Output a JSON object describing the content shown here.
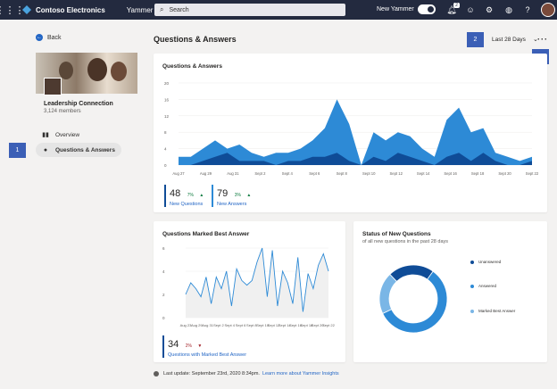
{
  "topbar": {
    "org": "Contoso Electronics",
    "app": "Yammer",
    "search_placeholder": "Search",
    "new_yammer_label": "New Yammer",
    "notification_count": "2",
    "icons": [
      "waffle-icon",
      "bell-icon",
      "smiley-icon",
      "gear-icon",
      "globe-icon",
      "help-icon"
    ]
  },
  "left": {
    "back_label": "Back",
    "group_name": "Leadership Connection",
    "group_members": "3,124 members",
    "nav": [
      {
        "label": "Overview",
        "icon": "chart-icon",
        "active": false
      },
      {
        "label": "Questions & Answers",
        "icon": "question-icon",
        "active": true
      }
    ]
  },
  "callouts": [
    "1",
    "2",
    "3"
  ],
  "main": {
    "title": "Questions & Answers",
    "range_label": "Last 28 Days",
    "more_label": "···"
  },
  "qa_card": {
    "title": "Questions & Answers",
    "stats": [
      {
        "value": "48",
        "pct": "7%",
        "label": "New Questions"
      },
      {
        "value": "79",
        "pct": "3%",
        "label": "New Answers"
      }
    ]
  },
  "best_card": {
    "title": "Questions Marked Best Answer",
    "stat": {
      "value": "34",
      "pct": "2%",
      "label": "Questions with Marked Best Answer"
    }
  },
  "status_card": {
    "title": "Status of New Questions",
    "subtitle": "of all new questions in the past 28 days",
    "legend": [
      {
        "label": "Unanswered",
        "color": "#0f4c97"
      },
      {
        "label": "Answered",
        "color": "#2d8ad6"
      },
      {
        "label": "Marked Best Answer",
        "color": "#7ab6e6"
      }
    ]
  },
  "footer": {
    "text": "Last update: September 23rd, 2020 8:34pm.",
    "link": "Learn more about Yammer Insights"
  },
  "chart_data": [
    {
      "type": "area",
      "title": "Questions & Answers",
      "ylim": [
        0,
        20
      ],
      "yticks": [
        "20",
        "16",
        "12",
        "8",
        "4",
        "0"
      ],
      "xticks": [
        "Aug 27",
        "Aug 29",
        "Aug 31",
        "Sept 2",
        "Sept 4",
        "Sept 6",
        "Sept 8",
        "Sept 10",
        "Sept 12",
        "Sept 14",
        "Sept 16",
        "Sept 18",
        "Sept 20",
        "Sept 22"
      ],
      "series": [
        {
          "name": "New Answers",
          "color": "#2d8ad6",
          "values": [
            2,
            2,
            4,
            6,
            4,
            5,
            3,
            2,
            3,
            3,
            4,
            6,
            9,
            16,
            10,
            0,
            8,
            6,
            8,
            7,
            4,
            2,
            11,
            14,
            8,
            9,
            3,
            2,
            1,
            2
          ]
        },
        {
          "name": "New Questions",
          "color": "#0f4c97",
          "values": [
            0,
            0,
            1,
            2,
            3,
            1,
            1,
            1,
            0,
            1,
            1,
            2,
            2,
            3,
            1,
            0,
            2,
            1,
            3,
            2,
            1,
            0,
            2,
            3,
            1,
            3,
            1,
            0,
            0,
            1
          ]
        }
      ]
    },
    {
      "type": "line",
      "title": "Questions Marked Best Answer",
      "ylim": [
        0,
        6
      ],
      "yticks": [
        "6",
        "4",
        "2",
        "0"
      ],
      "xticks": [
        "Aug 23",
        "Aug 29",
        "Aug 31",
        "Sept 2",
        "Sept 4",
        "Sept 6",
        "Sept 8",
        "Sept 10",
        "Sept 12",
        "Sept 14",
        "Sept 16",
        "Sept 18",
        "Sept 20",
        "Sept 22"
      ],
      "series": [
        {
          "name": "Questions Marked Best Answer",
          "color": "#2d8ad6",
          "values": [
            2.0,
            3.0,
            2.5,
            1.8,
            3.5,
            1.2,
            3.5,
            2.5,
            4.0,
            1.0,
            4.2,
            3.2,
            2.8,
            3.2,
            4.8,
            6.0,
            1.8,
            5.8,
            1.0,
            4.0,
            3.0,
            1.2,
            5.2,
            0.5,
            3.8,
            2.5,
            4.5,
            5.5,
            4.0
          ]
        }
      ]
    },
    {
      "type": "pie",
      "title": "Status of New Questions",
      "categories": [
        "Unanswered",
        "Answered",
        "Marked Best Answer"
      ],
      "values": [
        22,
        58,
        20
      ],
      "colors": [
        "#0f4c97",
        "#2d8ad6",
        "#7ab6e6"
      ]
    }
  ]
}
